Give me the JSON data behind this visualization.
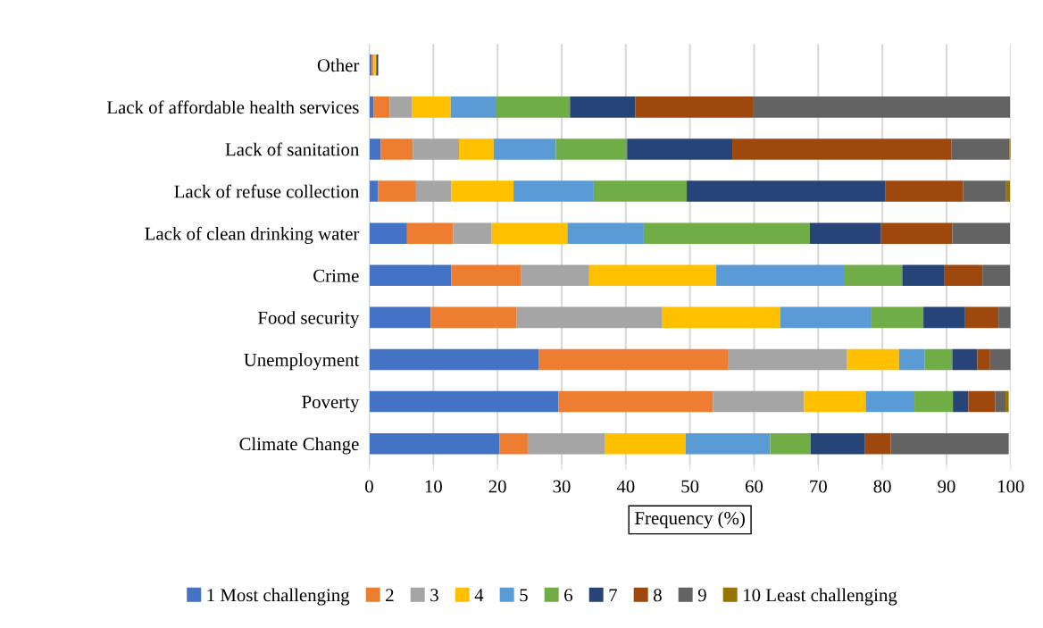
{
  "chart_data": {
    "type": "bar",
    "orientation": "horizontal",
    "stacked": true,
    "xlabel": "Frequency (%)",
    "categories": [
      "Other",
      "Lack of affordable health services",
      "Lack of sanitation",
      "Lack of refuse collection",
      "Lack of clean drinking water",
      "Crime",
      "Food security",
      "Unemployment",
      "Poverty",
      "Climate Change"
    ],
    "xlim": [
      0,
      100
    ],
    "xticks": [
      0,
      10,
      20,
      30,
      40,
      50,
      60,
      70,
      80,
      90,
      100
    ],
    "grid": "x",
    "legend": "bottom",
    "series": [
      {
        "name": "1 Most challenging",
        "color": "#4472c4",
        "values": [
          0.4,
          0.7,
          1.8,
          1.4,
          5.9,
          12.8,
          9.6,
          26.4,
          29.5,
          20.3
        ]
      },
      {
        "name": "2",
        "color": "#ed7d31",
        "values": [
          0.3,
          2.5,
          5.0,
          5.9,
          7.2,
          10.9,
          13.4,
          29.5,
          24.1,
          4.4
        ]
      },
      {
        "name": "3",
        "color": "#a5a5a5",
        "values": [
          null,
          3.5,
          7.2,
          5.5,
          6.0,
          10.6,
          22.7,
          18.6,
          14.2,
          12.0
        ]
      },
      {
        "name": "4",
        "color": "#ffc000",
        "values": [
          0.4,
          6.0,
          5.4,
          9.7,
          11.8,
          19.8,
          18.4,
          8.1,
          9.6,
          12.6
        ]
      },
      {
        "name": "5",
        "color": "#5b9bd5",
        "values": [
          0,
          7.0,
          9.7,
          12.5,
          11.9,
          19.9,
          14.2,
          4.0,
          7.6,
          13.2
        ]
      },
      {
        "name": "6",
        "color": "#70ad47",
        "values": [
          0,
          11.6,
          11.1,
          14.5,
          25.9,
          9.1,
          8.1,
          4.3,
          6.0,
          6.3
        ]
      },
      {
        "name": "7",
        "color": "#264478",
        "values": [
          0.3,
          10.2,
          16.4,
          31.0,
          11.1,
          6.6,
          6.5,
          3.9,
          2.4,
          8.5
        ]
      },
      {
        "name": "8",
        "color": "#9e480e",
        "values": [
          0,
          18.3,
          34.2,
          12.1,
          11.1,
          5.9,
          5.2,
          2.0,
          4.2,
          4.0
        ]
      },
      {
        "name": "9",
        "color": "#636363",
        "values": [
          0,
          40.1,
          9.0,
          6.7,
          9.0,
          4.3,
          1.9,
          3.2,
          1.6,
          18.4
        ]
      },
      {
        "name": "10 Least challenging",
        "color": "#997300",
        "values": [
          0,
          0,
          0.2,
          0.6,
          0,
          0,
          0,
          0,
          0.5,
          0
        ]
      }
    ]
  }
}
